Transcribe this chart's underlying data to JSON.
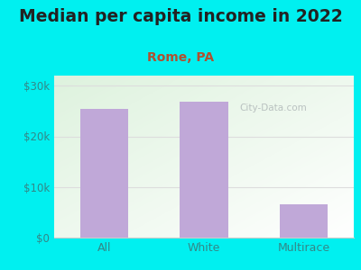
{
  "title": "Median per capita income in 2022",
  "subtitle": "Rome, PA",
  "categories": [
    "All",
    "White",
    "Multirace"
  ],
  "values": [
    25500,
    26800,
    6500
  ],
  "bar_color": "#c0a8d8",
  "title_fontsize": 13.5,
  "subtitle_fontsize": 10,
  "subtitle_color": "#b05030",
  "title_color": "#222222",
  "tick_color": "#338888",
  "background_outer": "#00f0f0",
  "background_plot_grad_top_left": "#ddf0dd",
  "background_plot_bottom_right": "#f5f5f0",
  "ylim": [
    0,
    32000
  ],
  "yticks": [
    0,
    10000,
    20000,
    30000
  ],
  "ytick_labels": [
    "$0",
    "$10k",
    "$20k",
    "$30k"
  ],
  "watermark": "City-Data.com",
  "axis_line_color": "#cccccc",
  "grid_color": "#dddddd"
}
